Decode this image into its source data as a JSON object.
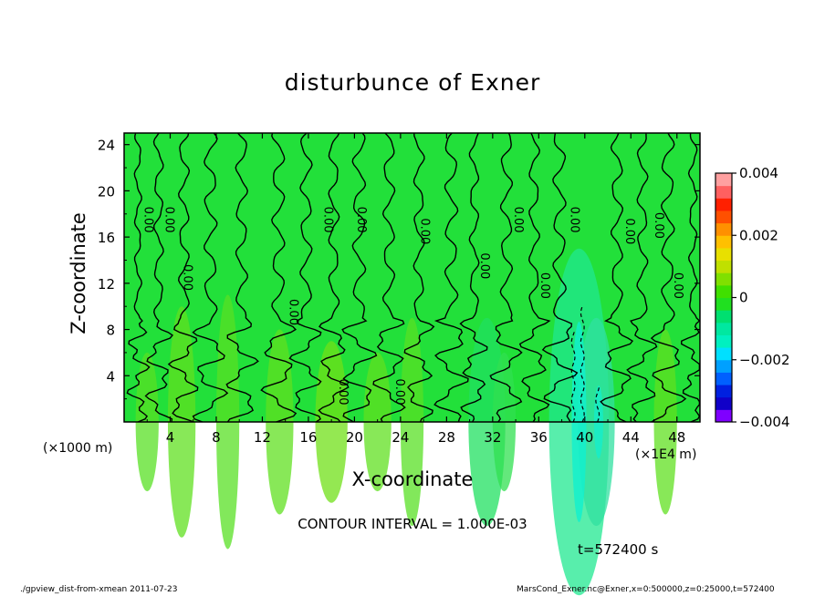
{
  "chart_data": {
    "type": "contour",
    "title": "disturbunce of Exner",
    "xlabel": "X-coordinate",
    "ylabel": "Z-coordinate",
    "x_unit_left": "(×1000 m)",
    "x_unit_right": "(×1E4 m)",
    "x_ticks": [
      "4",
      "8",
      "12",
      "16",
      "20",
      "24",
      "28",
      "32",
      "36",
      "40",
      "44",
      "48"
    ],
    "x_tick_values": [
      4,
      8,
      12,
      16,
      20,
      24,
      28,
      32,
      36,
      40,
      44,
      48
    ],
    "y_ticks": [
      "4",
      "8",
      "12",
      "16",
      "20",
      "24"
    ],
    "y_tick_values": [
      4,
      8,
      12,
      16,
      20,
      24
    ],
    "xlim": [
      0,
      50
    ],
    "ylim": [
      0,
      25
    ],
    "colorbar": {
      "ticks": [
        "0.004",
        "0.002",
        "0",
        "−0.002",
        "−0.004"
      ],
      "tick_values": [
        0.004,
        0.002,
        0,
        -0.002,
        -0.004
      ],
      "range": [
        -0.004,
        0.004
      ],
      "colors": [
        "#7f00ff",
        "#1000c8",
        "#0020e0",
        "#0060ff",
        "#00a0ff",
        "#00e0ff",
        "#00f0c0",
        "#00e8a0",
        "#00e070",
        "#20e020",
        "#40e000",
        "#80e000",
        "#c0e000",
        "#e8e000",
        "#ffc000",
        "#ff9000",
        "#ff5000",
        "#ff2000",
        "#ff6060",
        "#ffa0a0"
      ]
    },
    "contour_interval_text": "CONTOUR INTERVAL = 1.000E-03",
    "contour_label": "0.00",
    "time_text": "t=572400 s"
  },
  "footer": {
    "left": "./gpview_dist-from-xmean   2011-07-23",
    "right": "MarsCond_Exner.nc@Exner,x=0:500000,z=0:25000,t=572400"
  }
}
